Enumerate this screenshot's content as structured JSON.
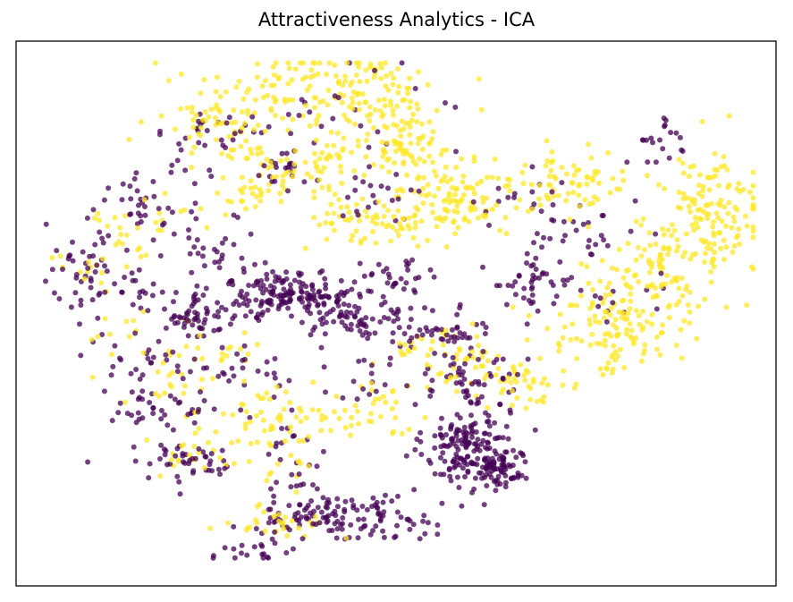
{
  "chart_data": {
    "type": "scatter",
    "title": "Attractiveness Analytics - ICA",
    "xlabel": "",
    "ylabel": "",
    "axes_ticks": "none",
    "grid": false,
    "legend": "none",
    "xlim": [
      0,
      100
    ],
    "ylim": [
      0,
      100
    ],
    "marker_opacity": 0.75,
    "series": [
      {
        "color": "#440154",
        "clusters": [
          {
            "cx": 59.3,
            "cy": 25.5,
            "sx": 2.8,
            "sy": 4.0,
            "n": 170
          },
          {
            "cx": 64.3,
            "cy": 21.8,
            "sx": 1.6,
            "sy": 2.0,
            "n": 55
          },
          {
            "cx": 35.0,
            "cy": 53.3,
            "sx": 4.6,
            "sy": 2.3,
            "n": 150
          },
          {
            "cx": 42.8,
            "cy": 50.5,
            "sx": 2.6,
            "sy": 2.5,
            "n": 60
          },
          {
            "cx": 23.5,
            "cy": 49.5,
            "sx": 3.0,
            "sy": 2.0,
            "n": 50
          },
          {
            "cx": 19.0,
            "cy": 32.5,
            "sx": 4.0,
            "sy": 1.8,
            "n": 40
          },
          {
            "cx": 22.5,
            "cy": 22.8,
            "sx": 4.5,
            "sy": 1.8,
            "n": 45
          },
          {
            "cx": 46.5,
            "cy": 12.6,
            "sx": 4.2,
            "sy": 2.0,
            "n": 75
          },
          {
            "cx": 38.5,
            "cy": 13.2,
            "sx": 3.2,
            "sy": 1.8,
            "n": 45
          },
          {
            "cx": 36.5,
            "cy": 21.0,
            "sx": 1.8,
            "sy": 5.0,
            "n": 30
          },
          {
            "cx": 54.5,
            "cy": 47.5,
            "sx": 4.5,
            "sy": 2.0,
            "n": 60
          },
          {
            "cx": 59.5,
            "cy": 38.5,
            "sx": 3.5,
            "sy": 3.0,
            "n": 55
          },
          {
            "cx": 50.0,
            "cy": 56.0,
            "sx": 3.2,
            "sy": 2.5,
            "n": 35
          },
          {
            "cx": 68.0,
            "cy": 56.0,
            "sx": 3.2,
            "sy": 2.2,
            "n": 35
          },
          {
            "cx": 75.0,
            "cy": 65.0,
            "sx": 3.5,
            "sy": 3.0,
            "n": 30
          },
          {
            "cx": 84.5,
            "cy": 81.0,
            "sx": 2.2,
            "sy": 2.8,
            "n": 20
          },
          {
            "cx": 17.5,
            "cy": 70.0,
            "sx": 4.0,
            "sy": 3.5,
            "n": 45
          },
          {
            "cx": 11.5,
            "cy": 55.0,
            "sx": 4.5,
            "sy": 2.8,
            "n": 40
          },
          {
            "cx": 35.5,
            "cy": 75.5,
            "sx": 2.0,
            "sy": 2.0,
            "n": 20
          },
          {
            "cx": 48.5,
            "cy": 72.5,
            "sx": 2.5,
            "sy": 2.0,
            "n": 20
          },
          {
            "cx": 42.0,
            "cy": 86.0,
            "sx": 8.0,
            "sy": 5.0,
            "n": 30
          },
          {
            "cx": 26.0,
            "cy": 82.0,
            "sx": 4.0,
            "sy": 3.0,
            "n": 25
          },
          {
            "cx": 15.0,
            "cy": 43.0,
            "sx": 3.0,
            "sy": 3.0,
            "n": 25
          },
          {
            "cx": 29.0,
            "cy": 40.0,
            "sx": 5.0,
            "sy": 2.5,
            "n": 30
          },
          {
            "cx": 32.0,
            "cy": 7.5,
            "sx": 3.0,
            "sy": 1.5,
            "n": 25
          },
          {
            "cx": 77.0,
            "cy": 53.0,
            "sx": 6.0,
            "sy": 3.0,
            "n": 20
          },
          {
            "cx": 66.0,
            "cy": 71.0,
            "sx": 4.0,
            "sy": 3.0,
            "n": 15
          },
          {
            "cx": 46.0,
            "cy": 39.0,
            "sx": 3.0,
            "sy": 3.0,
            "n": 20
          },
          {
            "cx": 27.0,
            "cy": 60.5,
            "sx": 3.0,
            "sy": 3.0,
            "n": 25
          },
          {
            "cx": 9.0,
            "cy": 61.0,
            "sx": 3.0,
            "sy": 2.5,
            "n": 20
          }
        ]
      },
      {
        "color": "#fde725",
        "clusters": [
          {
            "cx": 91.5,
            "cy": 68.0,
            "sx": 3.5,
            "sy": 5.5,
            "n": 130
          },
          {
            "cx": 84.0,
            "cy": 56.0,
            "sx": 4.5,
            "sy": 5.5,
            "n": 120
          },
          {
            "cx": 78.0,
            "cy": 47.0,
            "sx": 4.0,
            "sy": 4.0,
            "n": 90
          },
          {
            "cx": 72.5,
            "cy": 74.0,
            "sx": 4.5,
            "sy": 3.0,
            "n": 70
          },
          {
            "cx": 58.0,
            "cy": 71.0,
            "sx": 4.0,
            "sy": 4.0,
            "n": 90
          },
          {
            "cx": 48.0,
            "cy": 66.0,
            "sx": 5.0,
            "sy": 2.5,
            "n": 70
          },
          {
            "cx": 40.0,
            "cy": 91.5,
            "sx": 8.0,
            "sy": 3.5,
            "n": 130
          },
          {
            "cx": 48.0,
            "cy": 84.0,
            "sx": 5.0,
            "sy": 4.0,
            "n": 80
          },
          {
            "cx": 27.0,
            "cy": 85.0,
            "sx": 4.0,
            "sy": 3.0,
            "n": 60
          },
          {
            "cx": 31.0,
            "cy": 73.5,
            "sx": 3.5,
            "sy": 3.5,
            "n": 50
          },
          {
            "cx": 41.0,
            "cy": 77.0,
            "sx": 3.5,
            "sy": 3.0,
            "n": 40
          },
          {
            "cx": 53.0,
            "cy": 78.0,
            "sx": 3.0,
            "sy": 3.0,
            "n": 40
          },
          {
            "cx": 60.5,
            "cy": 40.5,
            "sx": 3.0,
            "sy": 2.5,
            "n": 40
          },
          {
            "cx": 67.5,
            "cy": 37.0,
            "sx": 3.0,
            "sy": 2.0,
            "n": 35
          },
          {
            "cx": 31.5,
            "cy": 30.5,
            "sx": 4.0,
            "sy": 2.5,
            "n": 40
          },
          {
            "cx": 42.0,
            "cy": 31.0,
            "sx": 5.0,
            "sy": 1.8,
            "n": 30
          },
          {
            "cx": 34.0,
            "cy": 11.5,
            "sx": 4.0,
            "sy": 1.8,
            "n": 30
          },
          {
            "cx": 24.5,
            "cy": 25.0,
            "sx": 3.5,
            "sy": 2.5,
            "n": 25
          },
          {
            "cx": 16.0,
            "cy": 67.0,
            "sx": 3.5,
            "sy": 3.5,
            "n": 25
          },
          {
            "cx": 28.0,
            "cy": 43.0,
            "sx": 3.0,
            "sy": 3.0,
            "n": 20
          },
          {
            "cx": 20.0,
            "cy": 38.0,
            "sx": 3.0,
            "sy": 3.0,
            "n": 20
          },
          {
            "cx": 48.5,
            "cy": 34.5,
            "sx": 2.5,
            "sy": 2.0,
            "n": 15
          },
          {
            "cx": 36.5,
            "cy": 24.0,
            "sx": 1.5,
            "sy": 4.0,
            "n": 15
          },
          {
            "cx": 53.5,
            "cy": 44.0,
            "sx": 3.0,
            "sy": 2.0,
            "n": 20
          },
          {
            "cx": 10.5,
            "cy": 58.5,
            "sx": 3.0,
            "sy": 2.0,
            "n": 15
          },
          {
            "cx": 13.0,
            "cy": 47.0,
            "sx": 2.0,
            "sy": 2.0,
            "n": 10
          }
        ]
      }
    ]
  }
}
